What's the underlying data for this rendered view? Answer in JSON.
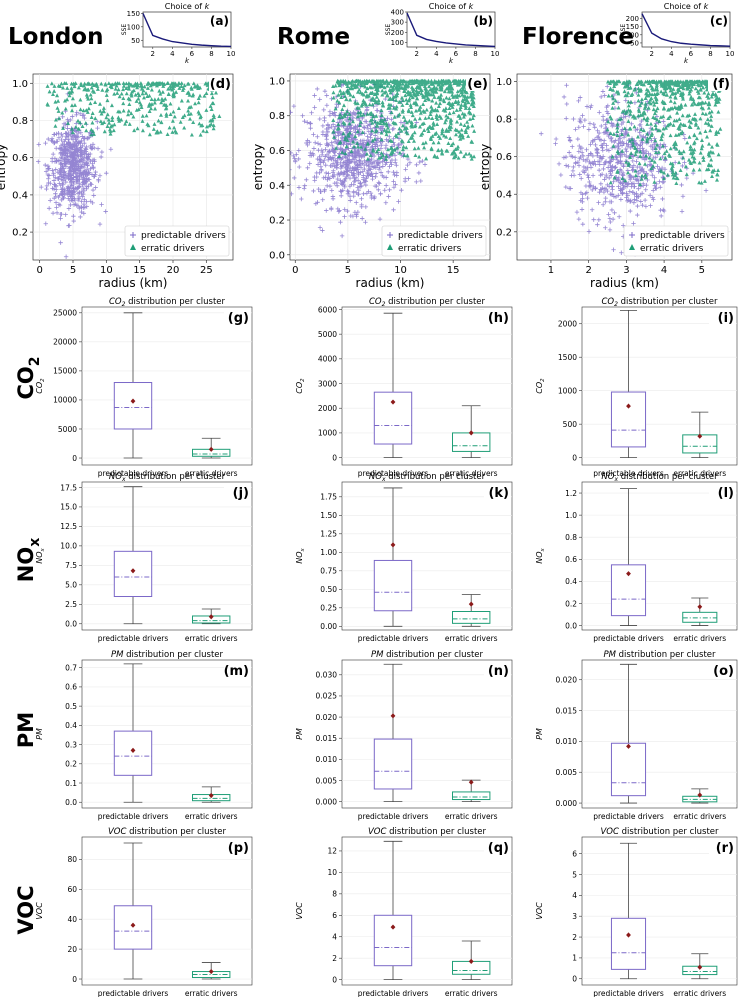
{
  "city_labels": [
    "London",
    "Rome",
    "Florence"
  ],
  "pollutant_labels": [
    "CO",
    "NO",
    "PM",
    "VOC"
  ],
  "pollutant_subscripts": [
    "2",
    "x",
    "",
    ""
  ],
  "colors": {
    "predictable": "#7b68c8",
    "erratic": "#1f9e77",
    "sse": "#1a1a7a",
    "mean": "#8b1a1a",
    "whisker": "#444444"
  },
  "chart_data": [
    {
      "id": "a",
      "type": "line",
      "panel_label": "(a)",
      "title": "Choice of k",
      "title_italic_part": "k",
      "xlabel": "k",
      "ylabel": "SSE",
      "x": [
        1,
        2,
        3,
        4,
        5,
        6,
        7,
        8,
        9,
        10
      ],
      "values": [
        150,
        68,
        55,
        45,
        40,
        35,
        32,
        30,
        28,
        27
      ],
      "xlim": [
        1,
        10
      ],
      "ylim": [
        25,
        155
      ],
      "xticks": [
        2,
        4,
        6,
        8,
        10
      ],
      "yticks": [
        50,
        100,
        150
      ]
    },
    {
      "id": "b",
      "type": "line",
      "panel_label": "(b)",
      "title": "Choice of k",
      "xlabel": "k",
      "ylabel": "SSE",
      "x": [
        1,
        2,
        3,
        4,
        5,
        6,
        7,
        8,
        9,
        10
      ],
      "values": [
        390,
        170,
        130,
        110,
        95,
        85,
        75,
        70,
        65,
        60
      ],
      "xlim": [
        1,
        10
      ],
      "ylim": [
        55,
        400
      ],
      "xticks": [
        2,
        4,
        6,
        8,
        10
      ],
      "yticks": [
        100,
        200,
        300,
        400
      ]
    },
    {
      "id": "c",
      "type": "line",
      "panel_label": "(c)",
      "title": "Choice of k",
      "xlabel": "k",
      "ylabel": "SSE",
      "x": [
        1,
        2,
        3,
        4,
        5,
        6,
        7,
        8,
        9,
        10
      ],
      "values": [
        230,
        110,
        75,
        58,
        48,
        42,
        38,
        34,
        32,
        30
      ],
      "xlim": [
        1,
        10
      ],
      "ylim": [
        25,
        240
      ],
      "xticks": [
        2,
        4,
        6,
        8,
        10
      ],
      "yticks": [
        50,
        100,
        150,
        200
      ]
    },
    {
      "id": "d",
      "type": "scatter",
      "panel_label": "(d)",
      "xlabel": "radius (km)",
      "ylabel": "entropy",
      "xlim": [
        -1,
        29
      ],
      "ylim": [
        0.05,
        1.05
      ],
      "xticks": [
        0,
        5,
        10,
        15,
        20,
        25
      ],
      "yticks": [
        0.2,
        0.4,
        0.6,
        0.8,
        1.0
      ],
      "legend": [
        "predictable drivers",
        "erratic drivers"
      ],
      "legend_position": "bottom-right",
      "series": [
        {
          "name": "predictable drivers",
          "marker": "+",
          "center": [
            5,
            0.55
          ],
          "spread": [
            1.8,
            0.12
          ],
          "count": 650
        },
        {
          "name": "erratic drivers",
          "marker": "triangle",
          "x_range": [
            1,
            27
          ],
          "y_range": [
            0.72,
            1.0
          ],
          "count": 420
        }
      ]
    },
    {
      "id": "e",
      "type": "scatter",
      "panel_label": "(e)",
      "xlabel": "radius (km)",
      "ylabel": "entropy",
      "xlim": [
        -0.5,
        18.5
      ],
      "ylim": [
        -0.03,
        1.04
      ],
      "xticks": [
        0,
        5,
        10,
        15
      ],
      "yticks": [
        0.0,
        0.2,
        0.4,
        0.6,
        0.8,
        1.0
      ],
      "legend": [
        "predictable drivers",
        "erratic drivers"
      ],
      "legend_position": "bottom-right",
      "series": [
        {
          "name": "predictable drivers",
          "marker": "+",
          "center": [
            5.5,
            0.58
          ],
          "spread": [
            2.3,
            0.15
          ],
          "count": 800
        },
        {
          "name": "erratic drivers",
          "marker": "triangle",
          "x_range": [
            3.5,
            17
          ],
          "y_range": [
            0.55,
            1.0
          ],
          "count": 900
        }
      ]
    },
    {
      "id": "f",
      "type": "scatter",
      "panel_label": "(f)",
      "xlabel": "radius (km)",
      "ylabel": "entropy",
      "xlim": [
        0.1,
        5.8
      ],
      "ylim": [
        0.05,
        1.04
      ],
      "xticks": [
        1,
        2,
        3,
        4,
        5
      ],
      "yticks": [
        0.2,
        0.4,
        0.6,
        0.8,
        1.0
      ],
      "legend": [
        "predictable drivers",
        "erratic drivers"
      ],
      "legend_position": "bottom-right",
      "series": [
        {
          "name": "predictable drivers",
          "marker": "+",
          "center": [
            2.8,
            0.58
          ],
          "spread": [
            0.7,
            0.16
          ],
          "count": 600
        },
        {
          "name": "erratic drivers",
          "marker": "triangle",
          "x_range": [
            2.5,
            5.5
          ],
          "y_range": [
            0.45,
            1.0
          ],
          "count": 650
        }
      ]
    },
    {
      "id": "g",
      "type": "box",
      "panel_label": "(g)",
      "title_prefix": "CO",
      "title_sub": "2",
      "title_suffix": " distribution per cluster",
      "ylabel": "CO",
      "ylabel_sub": "2",
      "categories": [
        "predictable drivers",
        "erratic drivers"
      ],
      "ylim": [
        -1200,
        26000
      ],
      "yticks": [
        0,
        5000,
        10000,
        15000,
        20000,
        25000
      ],
      "yticklabels": [
        "0",
        "5000",
        "10000",
        "15000",
        "20000",
        "25000"
      ],
      "boxes": [
        {
          "whislo": 0,
          "q1": 5000,
          "med": 8700,
          "q3": 13000,
          "whishi": 25000,
          "mean": 9800
        },
        {
          "whislo": 0,
          "q1": 300,
          "med": 700,
          "q3": 1500,
          "whishi": 3400,
          "mean": 1500
        }
      ]
    },
    {
      "id": "h",
      "type": "box",
      "panel_label": "(h)",
      "title_prefix": "CO",
      "title_sub": "2",
      "title_suffix": " distribution per cluster",
      "ylabel": "CO",
      "ylabel_sub": "2",
      "categories": [
        "predictable drivers",
        "erratic drivers"
      ],
      "ylim": [
        -300,
        6100
      ],
      "yticks": [
        0,
        1000,
        2000,
        3000,
        4000,
        5000,
        6000
      ],
      "yticklabels": [
        "0",
        "1000",
        "2000",
        "3000",
        "4000",
        "5000",
        "6000"
      ],
      "boxes": [
        {
          "whislo": 0,
          "q1": 550,
          "med": 1300,
          "q3": 2650,
          "whishi": 5850,
          "mean": 2250
        },
        {
          "whislo": 0,
          "q1": 250,
          "med": 480,
          "q3": 1000,
          "whishi": 2100,
          "mean": 1000
        }
      ]
    },
    {
      "id": "i",
      "type": "box",
      "panel_label": "(i)",
      "title_prefix": "CO",
      "title_sub": "2",
      "title_suffix": " distribution per cluster",
      "ylabel": "CO",
      "ylabel_sub": "2",
      "categories": [
        "predictable drivers",
        "erratic drivers"
      ],
      "ylim": [
        -110,
        2250
      ],
      "yticks": [
        0,
        500,
        1000,
        1500,
        2000
      ],
      "yticklabels": [
        "0",
        "500",
        "1000",
        "1500",
        "2000"
      ],
      "boxes": [
        {
          "whislo": 0,
          "q1": 160,
          "med": 410,
          "q3": 980,
          "whishi": 2200,
          "mean": 770
        },
        {
          "whislo": 0,
          "q1": 70,
          "med": 170,
          "q3": 340,
          "whishi": 680,
          "mean": 320
        }
      ]
    },
    {
      "id": "j",
      "type": "box",
      "panel_label": "(j)",
      "title_prefix": "NO",
      "title_sub": "x",
      "title_suffix": " distribution per cluster",
      "ylabel": "NO",
      "ylabel_sub": "x",
      "categories": [
        "predictable drivers",
        "erratic drivers"
      ],
      "ylim": [
        -0.8,
        18.2
      ],
      "yticks": [
        0,
        2.5,
        5,
        7.5,
        10,
        12.5,
        15,
        17.5
      ],
      "yticklabels": [
        "0.0",
        "2.5",
        "5.0",
        "7.5",
        "10.0",
        "12.5",
        "15.0",
        "17.5"
      ],
      "boxes": [
        {
          "whislo": 0,
          "q1": 3.5,
          "med": 6.0,
          "q3": 9.3,
          "whishi": 17.6,
          "mean": 6.8
        },
        {
          "whislo": 0,
          "q1": 0.1,
          "med": 0.4,
          "q3": 1.0,
          "whishi": 1.9,
          "mean": 0.9
        }
      ]
    },
    {
      "id": "k",
      "type": "box",
      "panel_label": "(k)",
      "title_prefix": "NO",
      "title_sub": "x",
      "title_suffix": " distribution per cluster",
      "ylabel": "NO",
      "ylabel_sub": "x",
      "categories": [
        "predictable drivers",
        "erratic drivers"
      ],
      "ylim": [
        -0.05,
        1.95
      ],
      "yticks": [
        0,
        0.25,
        0.5,
        0.75,
        1.0,
        1.25,
        1.5,
        1.75
      ],
      "yticklabels": [
        "0.00",
        "0.25",
        "0.50",
        "0.75",
        "1.00",
        "1.25",
        "1.50",
        "1.75"
      ],
      "boxes": [
        {
          "whislo": 0,
          "q1": 0.21,
          "med": 0.46,
          "q3": 0.89,
          "whishi": 1.87,
          "mean": 1.1
        },
        {
          "whislo": 0,
          "q1": 0.04,
          "med": 0.1,
          "q3": 0.2,
          "whishi": 0.43,
          "mean": 0.3
        }
      ]
    },
    {
      "id": "l",
      "type": "box",
      "panel_label": "(l)",
      "title_prefix": "NO",
      "title_sub": "x",
      "title_suffix": " distribution per cluster",
      "ylabel": "NO",
      "ylabel_sub": "x",
      "categories": [
        "predictable drivers",
        "erratic drivers"
      ],
      "ylim": [
        -0.04,
        1.3
      ],
      "yticks": [
        0,
        0.2,
        0.4,
        0.6,
        0.8,
        1.0,
        1.2
      ],
      "yticklabels": [
        "0.0",
        "0.2",
        "0.4",
        "0.6",
        "0.8",
        "1.0",
        "1.2"
      ],
      "boxes": [
        {
          "whislo": 0,
          "q1": 0.09,
          "med": 0.24,
          "q3": 0.55,
          "whishi": 1.24,
          "mean": 0.47
        },
        {
          "whislo": 0,
          "q1": 0.03,
          "med": 0.07,
          "q3": 0.12,
          "whishi": 0.25,
          "mean": 0.17
        }
      ]
    },
    {
      "id": "m",
      "type": "box",
      "panel_label": "(m)",
      "title_prefix": "PM",
      "title_sub": "",
      "title_suffix": " distribution per cluster",
      "ylabel": "PM",
      "ylabel_sub": "",
      "categories": [
        "predictable drivers",
        "erratic drivers"
      ],
      "ylim": [
        -0.03,
        0.74
      ],
      "yticks": [
        0,
        0.1,
        0.2,
        0.3,
        0.4,
        0.5,
        0.6,
        0.7
      ],
      "yticklabels": [
        "0.0",
        "0.1",
        "0.2",
        "0.3",
        "0.4",
        "0.5",
        "0.6",
        "0.7"
      ],
      "boxes": [
        {
          "whislo": 0,
          "q1": 0.14,
          "med": 0.24,
          "q3": 0.37,
          "whishi": 0.72,
          "mean": 0.27
        },
        {
          "whislo": 0,
          "q1": 0.008,
          "med": 0.02,
          "q3": 0.04,
          "whishi": 0.08,
          "mean": 0.035
        }
      ]
    },
    {
      "id": "n",
      "type": "box",
      "panel_label": "(n)",
      "title_prefix": "PM",
      "title_sub": "",
      "title_suffix": " distribution per cluster",
      "ylabel": "PM",
      "ylabel_sub": "",
      "categories": [
        "predictable drivers",
        "erratic drivers"
      ],
      "ylim": [
        -0.0015,
        0.0335
      ],
      "yticks": [
        0,
        0.005,
        0.01,
        0.015,
        0.02,
        0.025,
        0.03
      ],
      "yticklabels": [
        "0.000",
        "0.005",
        "0.010",
        "0.015",
        "0.020",
        "0.025",
        "0.030"
      ],
      "boxes": [
        {
          "whislo": 0,
          "q1": 0.003,
          "med": 0.0072,
          "q3": 0.0148,
          "whishi": 0.0325,
          "mean": 0.0203
        },
        {
          "whislo": 0,
          "q1": 0.0005,
          "med": 0.0011,
          "q3": 0.0023,
          "whishi": 0.0051,
          "mean": 0.0046
        }
      ]
    },
    {
      "id": "o",
      "type": "box",
      "panel_label": "(o)",
      "title_prefix": "PM",
      "title_sub": "",
      "title_suffix": " distribution per cluster",
      "ylabel": "PM",
      "ylabel_sub": "",
      "categories": [
        "predictable drivers",
        "erratic drivers"
      ],
      "ylim": [
        -0.0008,
        0.0232
      ],
      "yticks": [
        0,
        0.005,
        0.01,
        0.015,
        0.02
      ],
      "yticklabels": [
        "0.000",
        "0.005",
        "0.010",
        "0.015",
        "0.020"
      ],
      "boxes": [
        {
          "whislo": 0,
          "q1": 0.0012,
          "med": 0.0033,
          "q3": 0.0097,
          "whishi": 0.0225,
          "mean": 0.0092
        },
        {
          "whislo": 0,
          "q1": 0.0002,
          "med": 0.0006,
          "q3": 0.0011,
          "whishi": 0.0023,
          "mean": 0.0013
        }
      ]
    },
    {
      "id": "p",
      "type": "box",
      "panel_label": "(p)",
      "title_prefix": "VOC",
      "title_sub": "",
      "title_suffix": " distribution per cluster",
      "ylabel": "VOC",
      "ylabel_sub": "",
      "categories": [
        "predictable drivers",
        "erratic drivers"
      ],
      "ylim": [
        -4,
        95
      ],
      "yticks": [
        0,
        20,
        40,
        60,
        80
      ],
      "yticklabels": [
        "0",
        "20",
        "40",
        "60",
        "80"
      ],
      "boxes": [
        {
          "whislo": 0,
          "q1": 20,
          "med": 32,
          "q3": 49,
          "whishi": 91,
          "mean": 36
        },
        {
          "whislo": 0,
          "q1": 1,
          "med": 3,
          "q3": 5,
          "whishi": 11,
          "mean": 5
        }
      ]
    },
    {
      "id": "q",
      "type": "box",
      "panel_label": "(q)",
      "title_prefix": "VOC",
      "title_sub": "",
      "title_suffix": " distribution per cluster",
      "ylabel": "VOC",
      "ylabel_sub": "",
      "categories": [
        "predictable drivers",
        "erratic drivers"
      ],
      "ylim": [
        -0.5,
        13.3
      ],
      "yticks": [
        0,
        2,
        4,
        6,
        8,
        10,
        12
      ],
      "yticklabels": [
        "0",
        "2",
        "4",
        "6",
        "8",
        "10",
        "12"
      ],
      "boxes": [
        {
          "whislo": 0,
          "q1": 1.3,
          "med": 3.0,
          "q3": 6.0,
          "whishi": 12.9,
          "mean": 4.9
        },
        {
          "whislo": 0,
          "q1": 0.5,
          "med": 0.85,
          "q3": 1.7,
          "whishi": 3.6,
          "mean": 1.7
        }
      ]
    },
    {
      "id": "r",
      "type": "box",
      "panel_label": "(r)",
      "title_prefix": "VOC",
      "title_sub": "",
      "title_suffix": " distribution per cluster",
      "ylabel": "VOC",
      "ylabel_sub": "",
      "categories": [
        "predictable drivers",
        "erratic drivers"
      ],
      "ylim": [
        -0.3,
        6.8
      ],
      "yticks": [
        0,
        1,
        2,
        3,
        4,
        5,
        6
      ],
      "yticklabels": [
        "0",
        "1",
        "2",
        "3",
        "4",
        "5",
        "6"
      ],
      "boxes": [
        {
          "whislo": 0,
          "q1": 0.45,
          "med": 1.25,
          "q3": 2.9,
          "whishi": 6.5,
          "mean": 2.1
        },
        {
          "whislo": 0,
          "q1": 0.2,
          "med": 0.35,
          "q3": 0.6,
          "whishi": 1.2,
          "mean": 0.55
        }
      ]
    }
  ]
}
